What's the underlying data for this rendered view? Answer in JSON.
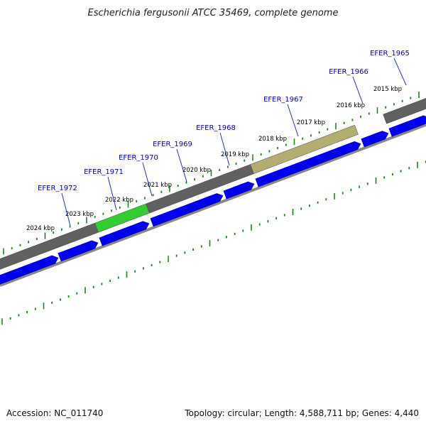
{
  "title": "Escherichia fergusonii ATCC 35469, complete genome",
  "accession": "Accession: NC_011740",
  "topology": "Topology: circular; Length: 4,588,711 bp; Genes: 4,440",
  "colors": {
    "background": "#ffffff",
    "gene_label": "#0000cc",
    "label_line": "#2233dd",
    "cds_blue": "#0000ee",
    "backbone_gray": "#606060",
    "highlight_green": "#33cc33",
    "highlight_khaki": "#b3ad72",
    "tick_green": "#1a8a1a",
    "outer_line": "#888888"
  },
  "kbp_labels": [
    "2015 kbp",
    "2016 kbp",
    "2017 kbp",
    "2018 kbp",
    "2019 kbp",
    "2020 kbp",
    "2021 kbp",
    "2022 kbp",
    "2023 kbp",
    "2024 kbp"
  ],
  "genes": [
    {
      "id": "EFER_1965"
    },
    {
      "id": "EFER_1966"
    },
    {
      "id": "EFER_1967"
    },
    {
      "id": "EFER_1968"
    },
    {
      "id": "EFER_1969"
    },
    {
      "id": "EFER_1970"
    },
    {
      "id": "EFER_1971"
    },
    {
      "id": "EFER_1972"
    }
  ]
}
